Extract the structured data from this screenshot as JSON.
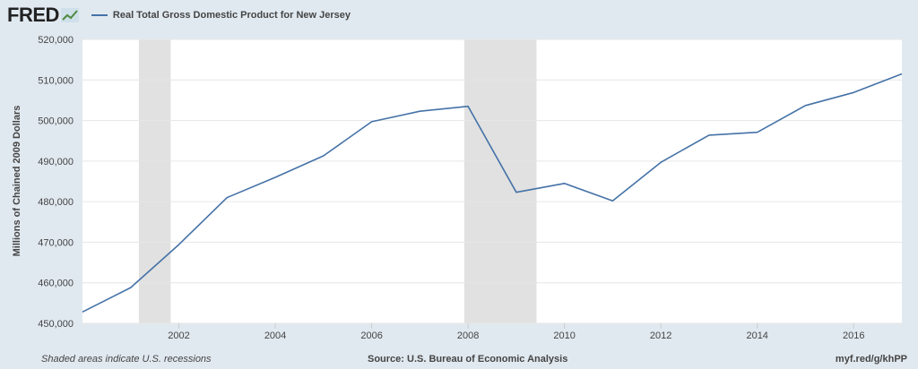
{
  "brand": {
    "logo_text": "FRED",
    "logo_icon": "fred-graph-icon",
    "line_color": "#4572a7",
    "recession_color": "#e1e1e1",
    "background_color": "#e1e9f0"
  },
  "footer": {
    "note": "Shaded areas indicate U.S. recessions",
    "source": "Source: U.S. Bureau of Economic Analysis",
    "url": "myf.red/g/khPP"
  },
  "chart_data": {
    "type": "line",
    "title": "",
    "xlabel": "",
    "ylabel": "Millions of Chained 2009 Dollars",
    "xlim": [
      2000,
      2017
    ],
    "ylim": [
      450000,
      520000
    ],
    "x_ticks": [
      2002,
      2004,
      2006,
      2008,
      2010,
      2012,
      2014,
      2016
    ],
    "x_tick_labels": [
      "2002",
      "2004",
      "2006",
      "2008",
      "2010",
      "2012",
      "2014",
      "2016"
    ],
    "y_ticks": [
      450000,
      460000,
      470000,
      480000,
      490000,
      500000,
      510000,
      520000
    ],
    "y_tick_labels": [
      "450,000",
      "460,000",
      "470,000",
      "480,000",
      "490,000",
      "500,000",
      "510,000",
      "520,000"
    ],
    "grid": "horizontal",
    "legend_position": "top-left",
    "recessions": [
      {
        "start": 2001.17,
        "end": 2001.83
      },
      {
        "start": 2007.92,
        "end": 2009.42
      }
    ],
    "series": [
      {
        "name": "Real Total Gross Domestic Product for New Jersey",
        "x": [
          2000,
          2001,
          2002,
          2003,
          2004,
          2005,
          2006,
          2007,
          2008,
          2009,
          2010,
          2011,
          2012,
          2013,
          2014,
          2015,
          2016,
          2017
        ],
        "y": [
          452800,
          458800,
          469400,
          481000,
          486000,
          491300,
          499700,
          502300,
          503500,
          482300,
          484500,
          480200,
          489700,
          496400,
          497100,
          503700,
          506900,
          511500
        ]
      }
    ]
  }
}
